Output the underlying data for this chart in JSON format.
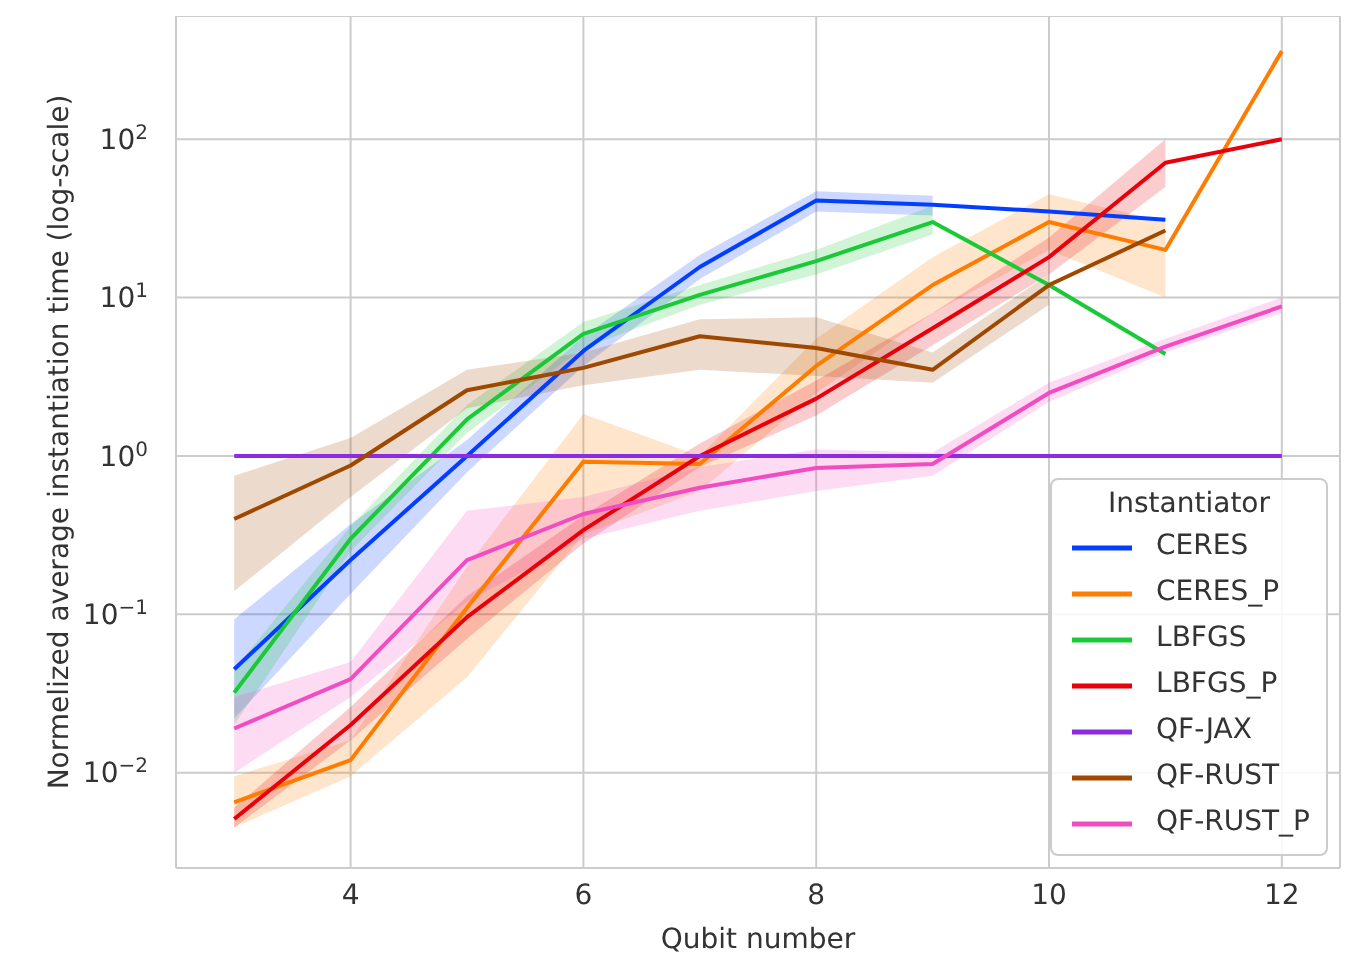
{
  "chart_data": {
    "type": "line",
    "xlabel": "Qubit number",
    "ylabel": "Normelized average instantiation time (log-scale)",
    "legend_title": "Instantiator",
    "x": [
      3,
      4,
      5,
      6,
      7,
      8,
      9,
      10,
      11,
      12
    ],
    "series": [
      {
        "name": "CERES",
        "color": "#023eff",
        "values": [
          0.045,
          0.22,
          1.0,
          4.6,
          15.6,
          41,
          38.5,
          35,
          31,
          null
        ],
        "lower": [
          0.022,
          0.135,
          0.79,
          3.7,
          13.1,
          35,
          33,
          null,
          null,
          null
        ],
        "upper": [
          0.093,
          0.37,
          1.26,
          5.7,
          18.6,
          47,
          44,
          null,
          null,
          null
        ]
      },
      {
        "name": "CERES_P",
        "color": "#ff7c00",
        "values": [
          0.0065,
          0.012,
          0.11,
          0.92,
          0.89,
          3.7,
          12,
          30,
          20,
          360
        ],
        "lower": [
          0.0045,
          0.0095,
          0.04,
          0.32,
          0.6,
          2.5,
          8,
          20,
          10,
          null
        ],
        "upper": [
          0.0095,
          0.016,
          0.2,
          1.84,
          1.0,
          5.5,
          18,
          45,
          30,
          null
        ]
      },
      {
        "name": "LBFGS",
        "color": "#1ac938",
        "values": [
          0.032,
          0.3,
          1.7,
          5.9,
          10.4,
          17,
          30,
          12,
          4.4,
          null
        ],
        "lower": [
          0.02,
          0.25,
          1.4,
          4.8,
          9,
          14,
          25,
          null,
          null,
          null
        ],
        "upper": [
          0.045,
          0.36,
          2.1,
          7,
          12,
          20,
          38,
          null,
          null,
          null
        ]
      },
      {
        "name": "LBFGS_P",
        "color": "#e8000b",
        "values": [
          0.0051,
          0.02,
          0.096,
          0.34,
          1.0,
          2.3,
          6.4,
          18,
          71,
          100
        ],
        "lower": [
          0.0045,
          0.016,
          0.07,
          0.28,
          0.85,
          1.8,
          5,
          14,
          50,
          null
        ],
        "upper": [
          0.006,
          0.026,
          0.13,
          0.42,
          1.2,
          3,
          8,
          24,
          100,
          null
        ]
      },
      {
        "name": "QF-JAX",
        "color": "#8b2be2",
        "values": [
          1,
          1,
          1,
          1,
          1,
          1,
          1,
          1,
          1,
          1
        ]
      },
      {
        "name": "QF-RUST",
        "color": "#9f4800",
        "values": [
          0.4,
          0.87,
          2.6,
          3.6,
          5.7,
          4.8,
          3.5,
          12,
          26.5,
          null
        ],
        "lower": [
          0.14,
          0.55,
          2,
          2.8,
          3.5,
          3.2,
          2.9,
          9,
          null,
          null
        ],
        "upper": [
          0.75,
          1.3,
          3.5,
          4.5,
          7.3,
          7.5,
          4.5,
          14,
          null,
          null
        ]
      },
      {
        "name": "QF-RUST_P",
        "color": "#f14cc1",
        "values": [
          0.019,
          0.039,
          0.22,
          0.43,
          0.63,
          0.84,
          0.89,
          2.5,
          4.9,
          8.8
        ],
        "lower": [
          0.01,
          0.03,
          0.12,
          0.3,
          0.45,
          0.6,
          0.75,
          2.2,
          4.5,
          8
        ],
        "upper": [
          0.03,
          0.05,
          0.45,
          0.55,
          0.85,
          1.1,
          1.05,
          2.9,
          5.5,
          10
        ]
      }
    ],
    "log": "y",
    "xlim": [
      2.5,
      12.5
    ],
    "xticks": [
      4,
      6,
      8,
      10,
      12
    ],
    "ylim": [
      0.0025,
      600
    ],
    "yticks": [
      {
        "value": 0.01,
        "label": "10$^{−2}$"
      },
      {
        "value": 0.1,
        "label": "10$^{−1}$"
      },
      {
        "value": 1,
        "label": "10$^{0}$"
      },
      {
        "value": 10,
        "label": "10$^{1}$"
      },
      {
        "value": 100,
        "label": "10$^{2}$"
      }
    ],
    "grid": true,
    "legend": "bottom right",
    "marker": "none",
    "line_style": "solid"
  }
}
